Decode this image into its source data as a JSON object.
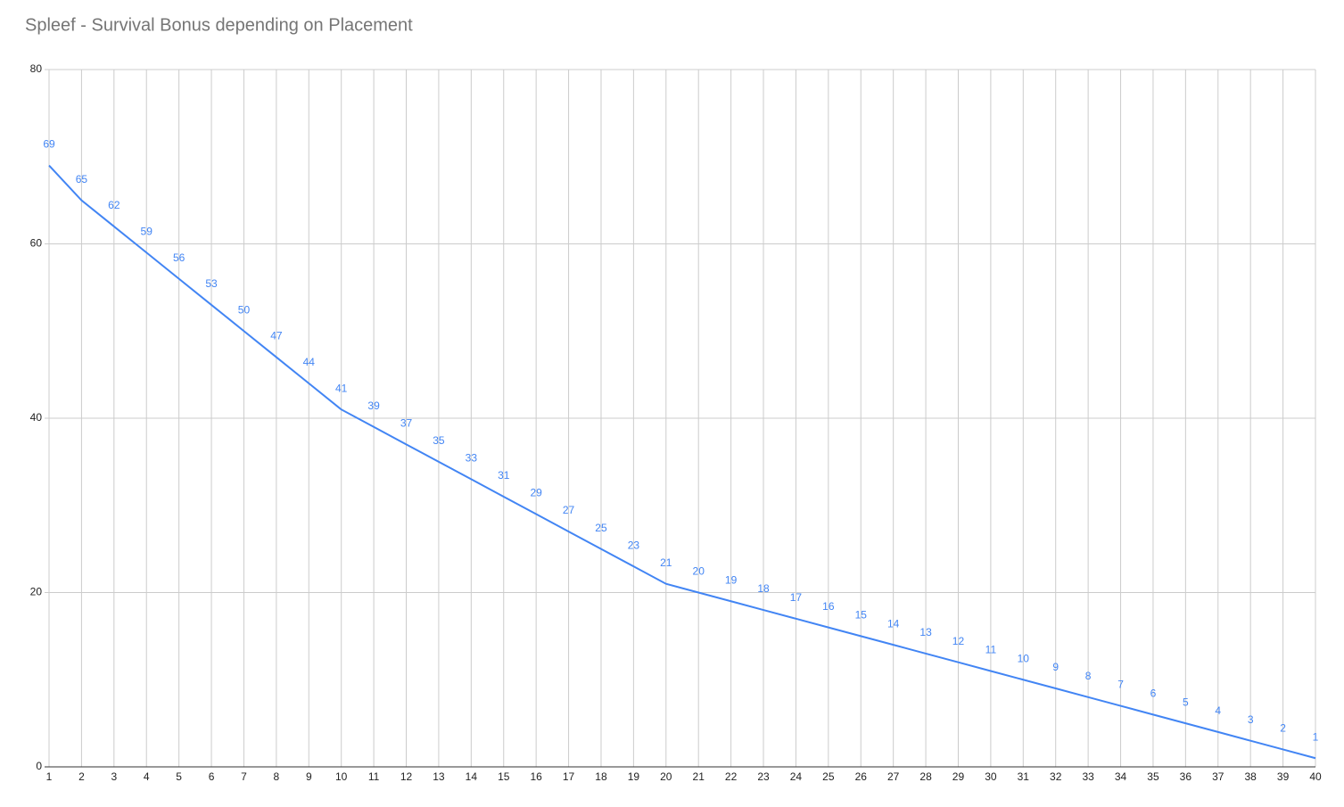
{
  "chart_data": {
    "type": "line",
    "title": "Spleef - Survival Bonus depending on Placement",
    "x": [
      1,
      2,
      3,
      4,
      5,
      6,
      7,
      8,
      9,
      10,
      11,
      12,
      13,
      14,
      15,
      16,
      17,
      18,
      19,
      20,
      21,
      22,
      23,
      24,
      25,
      26,
      27,
      28,
      29,
      30,
      31,
      32,
      33,
      34,
      35,
      36,
      37,
      38,
      39,
      40
    ],
    "series": [
      {
        "color": "#4285f4",
        "values": [
          69,
          65,
          62,
          59,
          56,
          53,
          50,
          47,
          44,
          41,
          39,
          37,
          35,
          33,
          31,
          29,
          27,
          25,
          23,
          21,
          20,
          19,
          18,
          17,
          16,
          15,
          14,
          13,
          12,
          11,
          10,
          9,
          8,
          7,
          6,
          5,
          4,
          3,
          2,
          1
        ]
      }
    ],
    "xlim": [
      1,
      40
    ],
    "xticks": [
      1,
      2,
      3,
      4,
      5,
      6,
      7,
      8,
      9,
      10,
      11,
      12,
      13,
      14,
      15,
      16,
      17,
      18,
      19,
      20,
      21,
      22,
      23,
      24,
      25,
      26,
      27,
      28,
      29,
      30,
      31,
      32,
      33,
      34,
      35,
      36,
      37,
      38,
      39,
      40
    ],
    "ylim": [
      0,
      80
    ],
    "yticks": [
      0,
      20,
      40,
      60,
      80
    ],
    "grid": true,
    "data_labels": true
  }
}
